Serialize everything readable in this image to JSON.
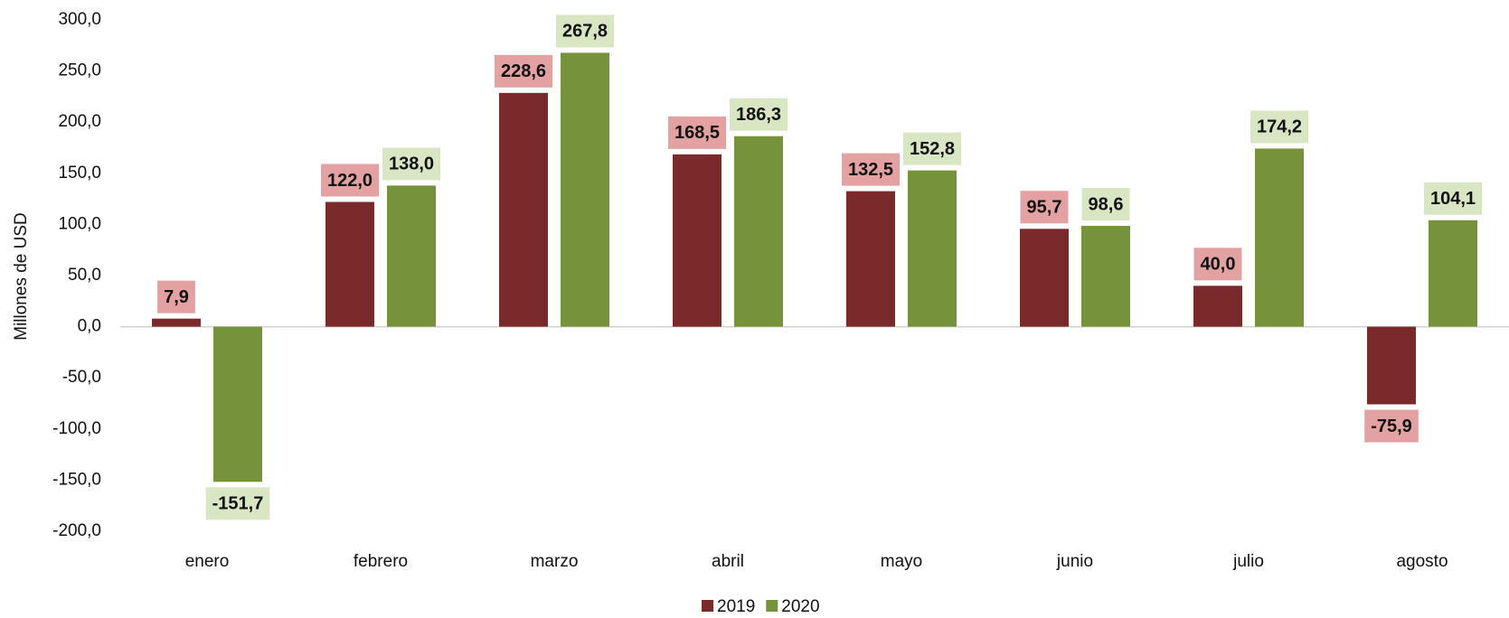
{
  "chart_data": {
    "type": "bar",
    "y_label": "Millones de USD",
    "categories": [
      "enero",
      "febrero",
      "marzo",
      "abril",
      "mayo",
      "junio",
      "julio",
      "agosto"
    ],
    "series": [
      {
        "name": "2019",
        "color": "#7b2a2b",
        "label_color": "#e3a1a1",
        "values": [
          7.9,
          122.0,
          228.6,
          168.5,
          132.5,
          95.7,
          40.0,
          -75.9
        ],
        "value_labels": [
          "7,9",
          "122,0",
          "228,6",
          "168,5",
          "132,5",
          "95,7",
          "40,0",
          "-75,9"
        ]
      },
      {
        "name": "2020",
        "color": "#76933c",
        "label_color": "#d8e6c3",
        "values": [
          -151.7,
          138.0,
          267.8,
          186.3,
          152.8,
          98.6,
          174.2,
          104.1
        ],
        "value_labels": [
          "-151,7",
          "138,0",
          "267,8",
          "186,3",
          "152,8",
          "98,6",
          "174,2",
          "104,1"
        ]
      }
    ],
    "ylim": [
      -200,
      300
    ],
    "yticks": [
      {
        "value": -200,
        "label": "-200,0"
      },
      {
        "value": -150,
        "label": "-150,0"
      },
      {
        "value": -100,
        "label": "-100,0"
      },
      {
        "value": -50,
        "label": "-50,0"
      },
      {
        "value": 0,
        "label": "0,0"
      },
      {
        "value": 50,
        "label": "50,0"
      },
      {
        "value": 100,
        "label": "100,0"
      },
      {
        "value": 150,
        "label": "150,0"
      },
      {
        "value": 200,
        "label": "200,0"
      },
      {
        "value": 250,
        "label": "250,0"
      },
      {
        "value": 300,
        "label": "300,0"
      }
    ],
    "legend": "bottom"
  }
}
